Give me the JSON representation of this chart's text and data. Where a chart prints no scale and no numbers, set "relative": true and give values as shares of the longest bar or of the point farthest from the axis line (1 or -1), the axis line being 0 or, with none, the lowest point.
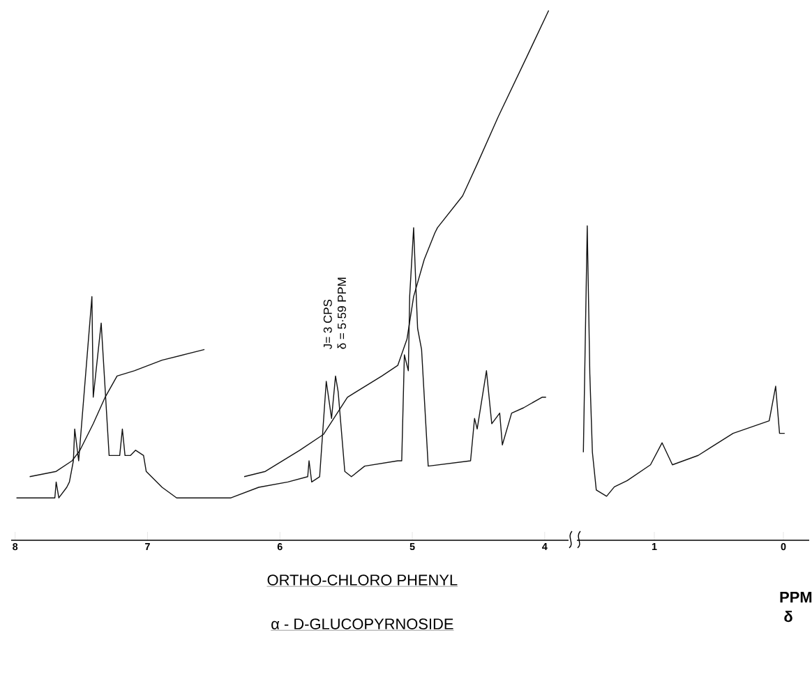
{
  "chart_data": [
    {
      "type": "line",
      "title": "ORTHO-CHLORO PHENYL",
      "subtitle": "α - D-GLUCOPYRNOSIDE",
      "relative": true,
      "tick_labels": "x",
      "xlim": [
        8.03,
        3.82
      ],
      "xticks": [
        8,
        7,
        6,
        5,
        4
      ],
      "annotations": [
        "J= 3 CPS",
        "δ = 5·59 PPM"
      ],
      "series": [
        {
          "color": "#111111",
          "x": [
            7.99,
            7.8,
            7.7,
            7.69,
            7.67,
            7.61,
            7.59,
            7.56,
            7.55,
            7.52,
            7.42,
            7.41,
            7.35,
            7.29,
            7.26,
            7.21,
            7.19,
            7.17,
            7.13,
            7.09,
            7.03,
            7.01,
            6.89,
            6.78,
            6.64,
            6.39,
            6.37,
            6.16,
            5.94,
            5.79,
            5.78,
            5.76,
            5.7,
            5.65,
            5.61,
            5.58,
            5.56,
            5.51,
            5.46,
            5.36,
            5.11,
            5.08,
            5.06,
            5.03,
            5.02,
            4.99,
            4.97,
            4.96,
            4.93,
            4.88,
            4.56,
            4.53,
            4.51,
            4.44,
            4.4,
            4.34,
            4.32,
            4.25,
            4.16,
            4.02,
            3.99
          ],
          "values": [
            0.08,
            0.08,
            0.08,
            0.11,
            0.08,
            0.1,
            0.11,
            0.15,
            0.21,
            0.15,
            0.46,
            0.27,
            0.41,
            0.16,
            0.16,
            0.16,
            0.21,
            0.16,
            0.16,
            0.17,
            0.16,
            0.13,
            0.1,
            0.08,
            0.08,
            0.08,
            0.08,
            0.1,
            0.11,
            0.12,
            0.15,
            0.11,
            0.12,
            0.3,
            0.23,
            0.31,
            0.28,
            0.13,
            0.12,
            0.14,
            0.15,
            0.15,
            0.35,
            0.32,
            0.46,
            0.59,
            0.46,
            0.4,
            0.36,
            0.14,
            0.15,
            0.23,
            0.21,
            0.32,
            0.22,
            0.24,
            0.18,
            0.24,
            0.25,
            0.27,
            0.27
          ]
        },
        {
          "color": "#111111",
          "x": [
            7.89,
            7.69,
            7.57,
            7.51,
            7.41,
            7.32,
            7.23,
            7.1,
            6.89,
            6.57
          ],
          "values": [
            0.12,
            0.13,
            0.15,
            0.17,
            0.22,
            0.27,
            0.31,
            0.32,
            0.34,
            0.36
          ]
        },
        {
          "color": "#111111",
          "x": [
            6.27,
            6.11,
            5.85,
            5.67,
            5.49,
            5.23,
            5.11,
            5.04,
            4.99,
            4.91,
            4.83,
            4.81,
            4.62,
            4.51,
            4.35,
            4.14,
            3.97
          ],
          "values": [
            0.12,
            0.13,
            0.17,
            0.2,
            0.27,
            0.31,
            0.33,
            0.38,
            0.46,
            0.53,
            0.58,
            0.59,
            0.65,
            0.71,
            0.8,
            0.91,
            1.0
          ]
        }
      ]
    },
    {
      "type": "line",
      "xlabel": "PPM δ",
      "relative": true,
      "tick_labels": "x",
      "xlim": [
        1.6,
        -0.2
      ],
      "xticks": [
        1,
        0
      ],
      "series": [
        {
          "color": "#111111",
          "x": [
            1.55,
            1.52,
            1.5,
            1.48,
            1.45,
            1.37,
            1.31,
            1.21,
            1.03,
            0.94,
            0.86,
            0.66,
            0.39,
            0.11,
            0.06,
            0.03,
            -0.01
          ],
          "values": [
            0.28,
            1.0,
            0.53,
            0.28,
            0.16,
            0.14,
            0.17,
            0.19,
            0.24,
            0.31,
            0.24,
            0.27,
            0.34,
            0.38,
            0.49,
            0.34,
            0.34
          ]
        }
      ]
    }
  ]
}
